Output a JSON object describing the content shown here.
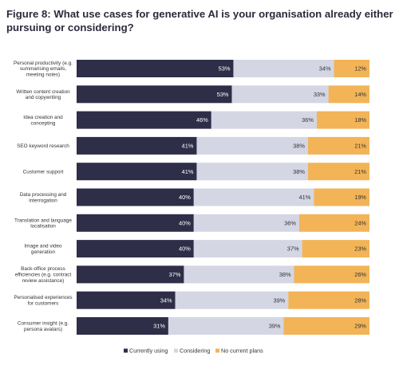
{
  "chart_data": {
    "type": "bar",
    "stacked": true,
    "orientation": "horizontal",
    "title": "Figure 8: What use cases for generative AI is your organisation already either pursuing or considering?",
    "title_lines": [
      "Figure 8: What use cases for generative AI is your organisation already either",
      "pursuing or considering?"
    ],
    "categories": [
      "Personal productivity (e.g. summarising emails, meeting notes)",
      "Written content creation and copywriting",
      "Idea creation and concepting",
      "SEO keyword research",
      "Customer support",
      "Data processing and interrogation",
      "Translation and language localisation",
      "Image and video generation",
      "Back-office process efficiencies (e.g. contract review assistance)",
      "Personalised experiences for customers",
      "Consumer insight (e.g. persona avatars)"
    ],
    "category_lines": [
      [
        "Personal productivity (e.g.",
        "summarising emails,",
        "meeting notes)"
      ],
      [
        "Written content creation",
        "and copywriting"
      ],
      [
        "Idea creation and",
        "concepting"
      ],
      [
        "SEO keyword research"
      ],
      [
        "Customer support"
      ],
      [
        "Data processing and",
        "interrogation"
      ],
      [
        "Translation and language",
        "localisation"
      ],
      [
        "Image and video",
        "generation"
      ],
      [
        "Back-office process",
        "efficiencies (e.g. contract",
        "review assistance)"
      ],
      [
        "Personalised experiences",
        "for customers"
      ],
      [
        "Consumer insight (e.g.",
        "persona avatars)"
      ]
    ],
    "series": [
      {
        "name": "Currently using",
        "color": "#2e2e48",
        "label_color": "#ffffff",
        "values": [
          53,
          53,
          46,
          41,
          41,
          40,
          40,
          40,
          37,
          34,
          31
        ]
      },
      {
        "name": "Considering",
        "color": "#d4d6e4",
        "label_color": "#333333",
        "values": [
          34,
          33,
          36,
          38,
          38,
          41,
          36,
          37,
          38,
          39,
          39
        ]
      },
      {
        "name": "No current plans",
        "color": "#f2b457",
        "label_color": "#333333",
        "values": [
          12,
          14,
          18,
          21,
          21,
          19,
          24,
          23,
          26,
          28,
          29
        ]
      }
    ],
    "value_suffix": "%",
    "legend_position": "bottom",
    "grid": false
  }
}
